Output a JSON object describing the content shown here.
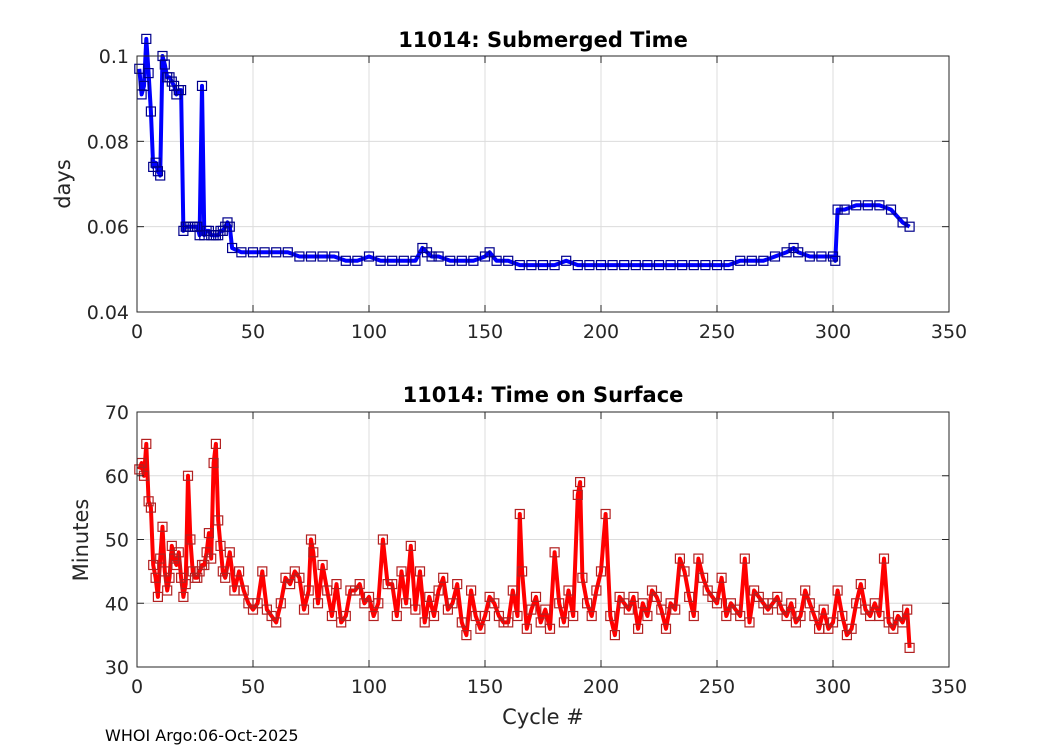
{
  "footer": "WHOI Argo:06-Oct-2025",
  "colors": {
    "series_top": "#0000ff",
    "marker_top": "#00008b",
    "series_bottom": "#ff0000",
    "marker_bottom": "#b22222",
    "grid": "#dcdcdc"
  },
  "chart_data": [
    {
      "type": "line",
      "title": "11014: Submerged Time",
      "xlabel": "",
      "ylabel": "days",
      "xlim": [
        0,
        350
      ],
      "ylim": [
        0.04,
        0.1
      ],
      "xticks": [
        0,
        50,
        100,
        150,
        200,
        250,
        300,
        350
      ],
      "yticks": [
        0.04,
        0.06,
        0.08,
        0.1
      ],
      "xtick_labels": [
        "0",
        "50",
        "100",
        "150",
        "200",
        "250",
        "300",
        "350"
      ],
      "ytick_labels": [
        "0.04",
        "0.06",
        "0.08",
        "0.1"
      ],
      "grid": true,
      "series": [
        {
          "name": "Submerged Time",
          "x": [
            1,
            2,
            3,
            4,
            5,
            6,
            7,
            8,
            9,
            10,
            11,
            12,
            13,
            14,
            15,
            16,
            17,
            18,
            19,
            20,
            21,
            22,
            23,
            24,
            25,
            26,
            27,
            28,
            29,
            30,
            31,
            32,
            33,
            34,
            35,
            36,
            37,
            38,
            39,
            40,
            41,
            45,
            50,
            55,
            60,
            65,
            70,
            75,
            80,
            85,
            90,
            95,
            100,
            105,
            110,
            115,
            120,
            123,
            125,
            127,
            130,
            135,
            140,
            145,
            150,
            152,
            155,
            160,
            165,
            170,
            175,
            180,
            185,
            190,
            195,
            200,
            205,
            210,
            215,
            220,
            225,
            230,
            235,
            240,
            245,
            250,
            255,
            260,
            265,
            270,
            275,
            280,
            283,
            285,
            290,
            295,
            300,
            301,
            302,
            305,
            310,
            315,
            320,
            325,
            330,
            333
          ],
          "values": [
            0.097,
            0.091,
            0.093,
            0.104,
            0.096,
            0.087,
            0.074,
            0.075,
            0.073,
            0.072,
            0.1,
            0.098,
            0.095,
            0.095,
            0.094,
            0.093,
            0.091,
            0.092,
            0.092,
            0.059,
            0.06,
            0.06,
            0.06,
            0.06,
            0.06,
            0.06,
            0.058,
            0.093,
            0.058,
            0.059,
            0.059,
            0.058,
            0.058,
            0.058,
            0.058,
            0.059,
            0.059,
            0.06,
            0.061,
            0.06,
            0.055,
            0.054,
            0.054,
            0.054,
            0.054,
            0.054,
            0.053,
            0.053,
            0.053,
            0.053,
            0.052,
            0.052,
            0.053,
            0.052,
            0.052,
            0.052,
            0.052,
            0.055,
            0.054,
            0.053,
            0.053,
            0.052,
            0.052,
            0.052,
            0.053,
            0.054,
            0.052,
            0.052,
            0.051,
            0.051,
            0.051,
            0.051,
            0.052,
            0.051,
            0.051,
            0.051,
            0.051,
            0.051,
            0.051,
            0.051,
            0.051,
            0.051,
            0.051,
            0.051,
            0.051,
            0.051,
            0.051,
            0.052,
            0.052,
            0.052,
            0.053,
            0.054,
            0.055,
            0.054,
            0.053,
            0.053,
            0.053,
            0.052,
            0.064,
            0.064,
            0.065,
            0.065,
            0.065,
            0.064,
            0.061,
            0.06
          ]
        }
      ]
    },
    {
      "type": "line",
      "title": "11014: Time on Surface",
      "xlabel": "Cycle #",
      "ylabel": "Minutes",
      "xlim": [
        0,
        350
      ],
      "ylim": [
        30,
        70
      ],
      "xticks": [
        0,
        50,
        100,
        150,
        200,
        250,
        300,
        350
      ],
      "yticks": [
        30,
        40,
        50,
        60,
        70
      ],
      "xtick_labels": [
        "0",
        "50",
        "100",
        "150",
        "200",
        "250",
        "300",
        "350"
      ],
      "ytick_labels": [
        "30",
        "40",
        "50",
        "60",
        "70"
      ],
      "grid": true,
      "series": [
        {
          "name": "Time on Surface",
          "x": [
            1,
            2,
            3,
            4,
            5,
            6,
            7,
            8,
            9,
            10,
            11,
            12,
            13,
            14,
            15,
            16,
            17,
            18,
            19,
            20,
            21,
            22,
            23,
            24,
            25,
            26,
            27,
            28,
            29,
            30,
            31,
            32,
            33,
            34,
            35,
            36,
            37,
            38,
            40,
            42,
            44,
            46,
            48,
            50,
            52,
            54,
            56,
            58,
            60,
            62,
            64,
            66,
            68,
            70,
            72,
            74,
            75,
            76,
            78,
            80,
            82,
            84,
            86,
            88,
            90,
            92,
            94,
            96,
            98,
            100,
            102,
            104,
            106,
            108,
            110,
            112,
            114,
            116,
            118,
            120,
            122,
            124,
            126,
            128,
            130,
            132,
            134,
            136,
            138,
            140,
            142,
            144,
            146,
            148,
            150,
            152,
            154,
            156,
            158,
            160,
            162,
            164,
            165,
            166,
            168,
            170,
            172,
            174,
            176,
            178,
            180,
            182,
            184,
            186,
            188,
            190,
            191,
            192,
            194,
            196,
            198,
            200,
            202,
            204,
            206,
            208,
            210,
            212,
            214,
            216,
            218,
            220,
            222,
            224,
            226,
            228,
            230,
            232,
            234,
            236,
            238,
            240,
            242,
            244,
            246,
            248,
            250,
            252,
            254,
            256,
            258,
            260,
            262,
            264,
            266,
            268,
            270,
            272,
            274,
            276,
            278,
            280,
            282,
            284,
            286,
            288,
            290,
            292,
            294,
            296,
            298,
            300,
            302,
            304,
            306,
            308,
            310,
            312,
            314,
            316,
            318,
            320,
            322,
            324,
            326,
            328,
            330,
            332,
            333
          ],
          "values": [
            61,
            62,
            60,
            65,
            56,
            55,
            46,
            44,
            41,
            47,
            52,
            45,
            42,
            44,
            49,
            47,
            46,
            48,
            44,
            41,
            43,
            60,
            50,
            45,
            44,
            44,
            45,
            46,
            46,
            48,
            51,
            47,
            62,
            65,
            53,
            49,
            45,
            44,
            48,
            42,
            45,
            42,
            40,
            39,
            40,
            45,
            39,
            38,
            37,
            40,
            44,
            43,
            45,
            44,
            39,
            42,
            50,
            48,
            40,
            46,
            42,
            38,
            43,
            37,
            38,
            42,
            42,
            43,
            40,
            41,
            38,
            40,
            50,
            43,
            43,
            38,
            45,
            40,
            49,
            39,
            45,
            37,
            41,
            38,
            42,
            44,
            39,
            40,
            43,
            37,
            35,
            42,
            38,
            36,
            38,
            41,
            40,
            38,
            37,
            37,
            42,
            38,
            54,
            45,
            36,
            39,
            41,
            37,
            39,
            36,
            48,
            40,
            37,
            42,
            38,
            57,
            59,
            44,
            40,
            38,
            42,
            45,
            54,
            38,
            35,
            41,
            40,
            39,
            41,
            36,
            40,
            38,
            42,
            41,
            39,
            36,
            40,
            39,
            47,
            45,
            41,
            38,
            47,
            44,
            42,
            41,
            40,
            44,
            38,
            40,
            39,
            38,
            47,
            37,
            42,
            41,
            40,
            39,
            40,
            41,
            39,
            38,
            40,
            37,
            38,
            42,
            40,
            38,
            36,
            39,
            36,
            37,
            42,
            38,
            35,
            36,
            40,
            43,
            39,
            38,
            40,
            38,
            47,
            37,
            36,
            38,
            37,
            39,
            33
          ]
        }
      ]
    }
  ]
}
